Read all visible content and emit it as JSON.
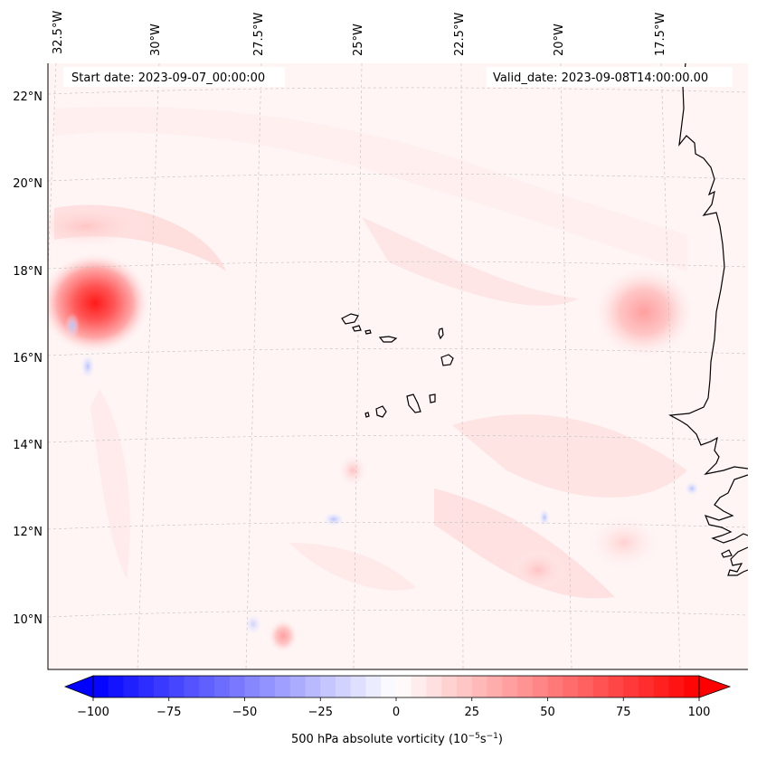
{
  "map": {
    "start_date_label": "Start date: 2023-09-07_00:00:00",
    "valid_date_label": "Valid_date: 2023-09-08T14:00:00.00",
    "longitude_labels": [
      "32.5°W",
      "30°W",
      "27.5°W",
      "25°W",
      "22.5°W",
      "20°W",
      "17.5°W"
    ],
    "latitude_labels": [
      "22°N",
      "20°N",
      "18°N",
      "16°N",
      "14°N",
      "12°N",
      "10°N"
    ],
    "field": "500 hPa absolute vorticity",
    "colors": {
      "positive": "#ff0000",
      "negative": "#0000ff",
      "coast": "#000000",
      "grid": "#bbbbbb"
    }
  },
  "colorbar": {
    "tick_labels": [
      "−100",
      "−75",
      "−50",
      "−25",
      "0",
      "25",
      "50",
      "75",
      "100"
    ],
    "ticks": [
      -100,
      -75,
      -50,
      -25,
      0,
      25,
      50,
      75,
      100
    ],
    "range": [
      -100,
      100
    ],
    "levels": 40,
    "label_prefix": "500 hPa absolute vorticity (10",
    "label_exp1": "−5",
    "label_mid": "s",
    "label_exp2": "−1",
    "label_suffix": ")"
  }
}
